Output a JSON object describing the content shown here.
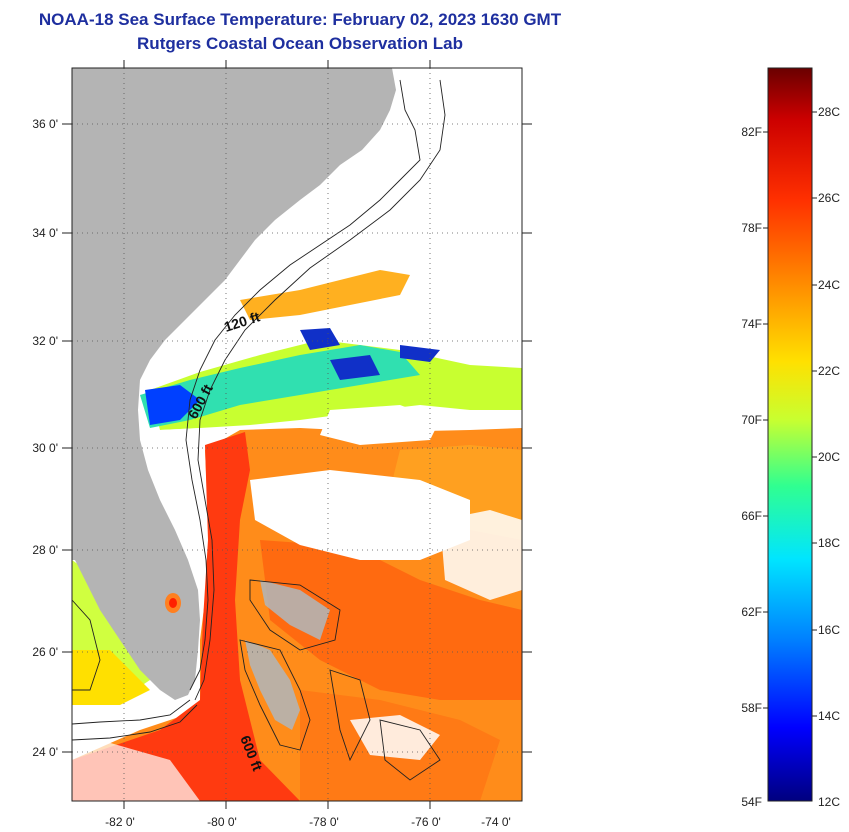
{
  "header": {
    "title": "NOAA-18 Sea Surface Temperature:  February 02, 2023 1630 GMT",
    "subtitle": "Rutgers Coastal Ocean Observation Lab"
  },
  "map": {
    "lat_labels": [
      "36 0'",
      "34 0'",
      "32 0'",
      "30 0'",
      "28 0'",
      "26 0'",
      "24 0'"
    ],
    "lon_labels": [
      "-82 0'",
      "-80 0'",
      "-78 0'",
      "-76 0'",
      "-74 0'"
    ],
    "isobath_labels": [
      "120 ft",
      "600 ft",
      "600 ft"
    ]
  },
  "colorbar": {
    "fahrenheit_labels": [
      "82F",
      "78F",
      "74F",
      "70F",
      "66F",
      "62F",
      "58F",
      "54F"
    ],
    "celsius_labels": [
      "28C",
      "26C",
      "24C",
      "22C",
      "20C",
      "18C",
      "16C",
      "14C",
      "12C"
    ],
    "colors": [
      "#00007f",
      "#0000ff",
      "#0080ff",
      "#00e5ff",
      "#30ff90",
      "#c8ff30",
      "#ffe000",
      "#ff9000",
      "#ff3000",
      "#cc0000",
      "#6a0000"
    ]
  }
}
